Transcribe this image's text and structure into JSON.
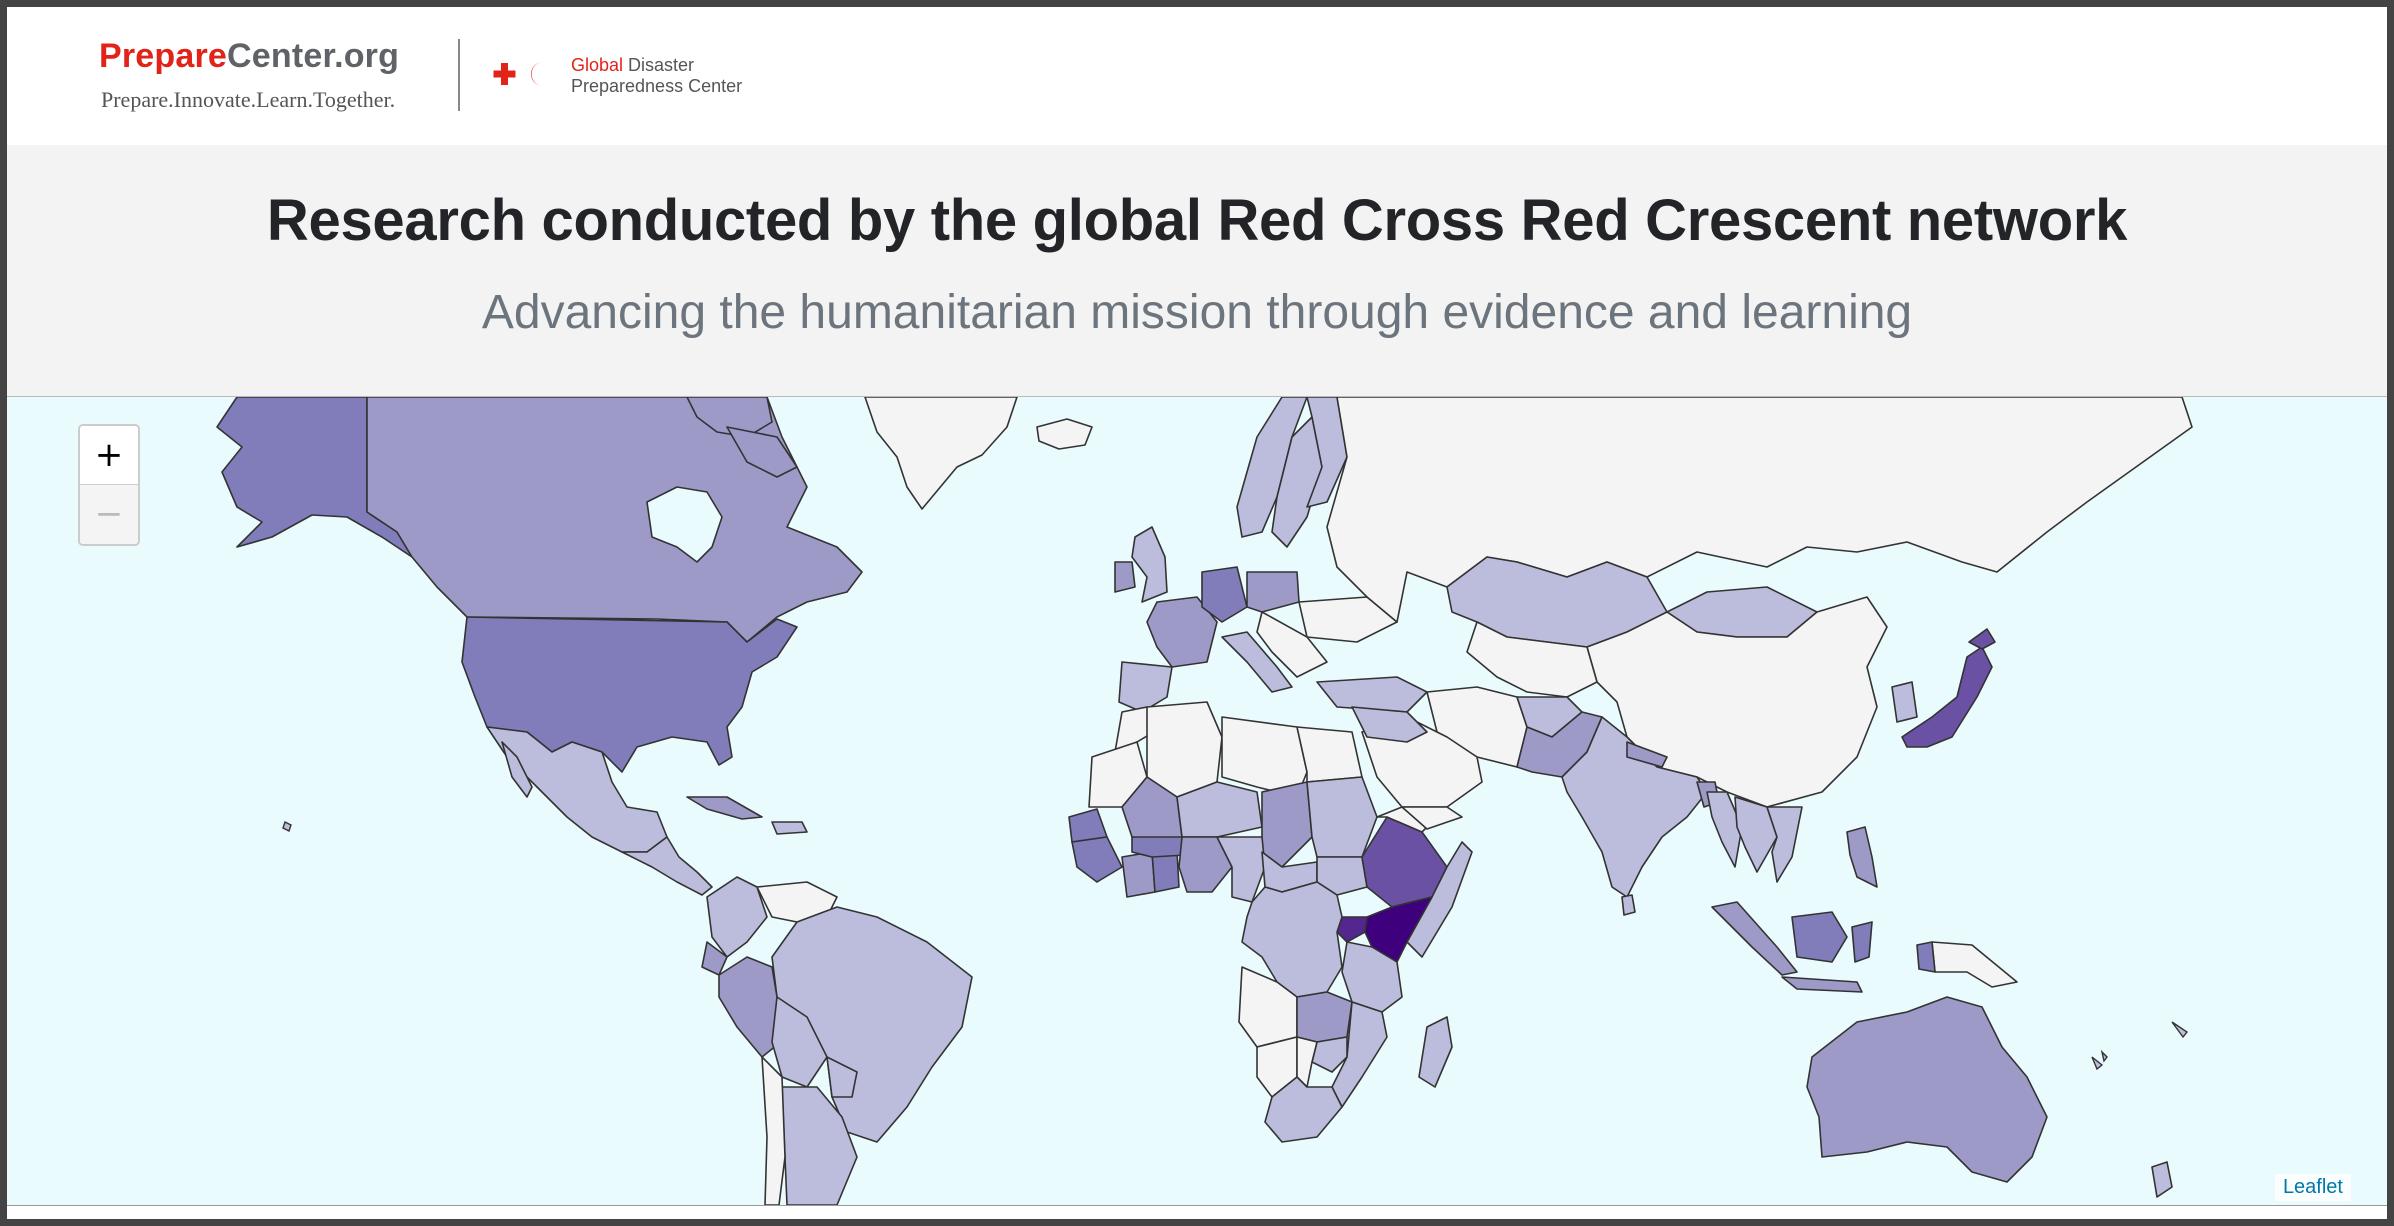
{
  "header": {
    "logo_prefix": "Prepare",
    "logo_suffix": "Center.org",
    "logo_tagline": "Prepare.Innovate.Learn.Together.",
    "gdpc_word1": "Global",
    "gdpc_word2": " Disaster",
    "gdpc_line2": "Preparedness Center",
    "brand_red": "#e2231a"
  },
  "banner": {
    "title": "Research conducted by the global Red Cross Red Crescent network",
    "subtitle": "Advancing the humanitarian mission through evidence and learning"
  },
  "map": {
    "zoom_in_label": "+",
    "zoom_out_label": "−",
    "attribution": "Leaflet",
    "ocean_color": "#eafbfd",
    "choropleth_scale": [
      "#f4f4f4",
      "#bcbddc",
      "#9e9ac8",
      "#807dba",
      "#6a51a3",
      "#54278f",
      "#3f007d"
    ]
  }
}
